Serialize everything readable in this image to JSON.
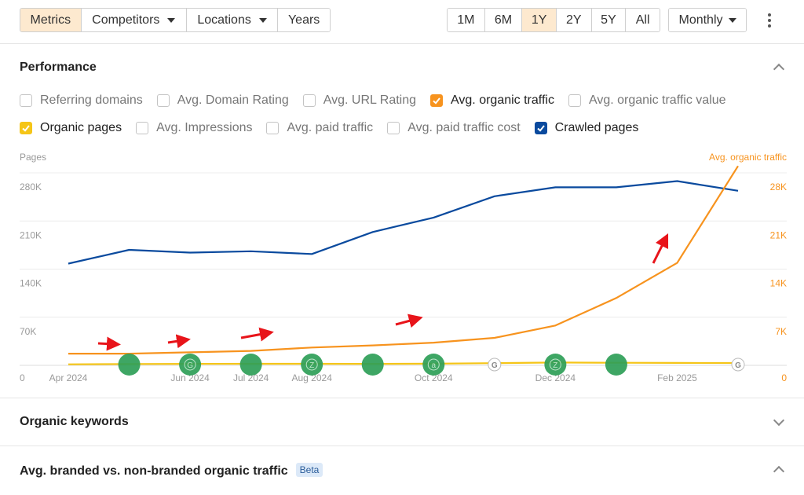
{
  "toolbar": {
    "left_buttons": [
      "Metrics",
      "Competitors",
      "Locations",
      "Years"
    ],
    "active_left": "Metrics",
    "ranges": [
      "1M",
      "6M",
      "1Y",
      "2Y",
      "5Y",
      "All"
    ],
    "active_range": "1Y",
    "interval": "Monthly"
  },
  "performance": {
    "title": "Performance",
    "metrics_row1": [
      {
        "label": "Referring domains",
        "checked": false,
        "color": ""
      },
      {
        "label": "Avg. Domain Rating",
        "checked": false,
        "color": ""
      },
      {
        "label": "Avg. URL Rating",
        "checked": false,
        "color": ""
      },
      {
        "label": "Avg. organic traffic",
        "checked": true,
        "color": "#f7931e"
      },
      {
        "label": "Avg. organic traffic value",
        "checked": false,
        "color": ""
      }
    ],
    "metrics_row2": [
      {
        "label": "Organic pages",
        "checked": true,
        "color": "#f5c518"
      },
      {
        "label": "Avg. Impressions",
        "checked": false,
        "color": ""
      },
      {
        "label": "Avg. paid traffic",
        "checked": false,
        "color": ""
      },
      {
        "label": "Avg. paid traffic cost",
        "checked": false,
        "color": ""
      },
      {
        "label": "Crawled pages",
        "checked": true,
        "color": "#0a4a9e"
      }
    ]
  },
  "chart_data": {
    "type": "line",
    "left_axis_title": "Pages",
    "right_axis_title": "Avg. organic traffic",
    "left_ticks": [
      "280K",
      "210K",
      "140K",
      "70K",
      "0"
    ],
    "right_ticks": [
      "28K",
      "21K",
      "14K",
      "7K",
      "0"
    ],
    "left_ylim": [
      0,
      280000
    ],
    "right_ylim": [
      0,
      28000
    ],
    "x_labels": [
      "Apr 2024",
      "Jun 2024",
      "Jul 2024",
      "Aug 2024",
      "Oct 2024",
      "Dec 2024",
      "Feb 2025"
    ],
    "x": [
      "Apr 2024",
      "May 2024",
      "Jun 2024",
      "Jul 2024",
      "Aug 2024",
      "Sep 2024",
      "Oct 2024",
      "Nov 2024",
      "Dec 2024",
      "Jan 2025",
      "Feb 2025",
      "Mar 2025"
    ],
    "series": [
      {
        "name": "Crawled pages",
        "axis": "left",
        "color": "#0a4a9e",
        "values": [
          148000,
          168000,
          164000,
          166000,
          162000,
          194000,
          215000,
          246000,
          259000,
          259000,
          268000,
          254000
        ]
      },
      {
        "name": "Avg. organic traffic",
        "axis": "right",
        "color": "#f7931e",
        "values": [
          1700,
          1700,
          1900,
          2100,
          2600,
          2900,
          3300,
          4000,
          5800,
          9800,
          14900,
          29000
        ]
      },
      {
        "name": "Organic pages",
        "axis": "left",
        "color": "#f5c518",
        "values": [
          1500,
          2000,
          2200,
          2300,
          2300,
          2200,
          2400,
          3200,
          4100,
          3800,
          3600,
          3400
        ]
      }
    ],
    "annotations": [
      {
        "x": 1.0,
        "kind": "green-dot",
        "label": ""
      },
      {
        "x": 2.0,
        "kind": "green-dot",
        "label": "G"
      },
      {
        "x": 3.0,
        "kind": "green-dot",
        "label": ""
      },
      {
        "x": 4.0,
        "kind": "green-dot",
        "label": "Z"
      },
      {
        "x": 5.0,
        "kind": "green-dot",
        "label": ""
      },
      {
        "x": 6.0,
        "kind": "green-dot",
        "label": "a"
      },
      {
        "x": 7.0,
        "kind": "google-marker",
        "label": "G"
      },
      {
        "x": 8.0,
        "kind": "green-dot",
        "label": "Z"
      },
      {
        "x": 9.0,
        "kind": "green-dot",
        "label": ""
      },
      {
        "x": 11.0,
        "kind": "google-marker",
        "label": "G"
      }
    ],
    "grid": true
  },
  "sections": {
    "organic_keywords": "Organic keywords",
    "branded": "Avg. branded vs. non-branded organic traffic",
    "branded_badge": "Beta"
  }
}
